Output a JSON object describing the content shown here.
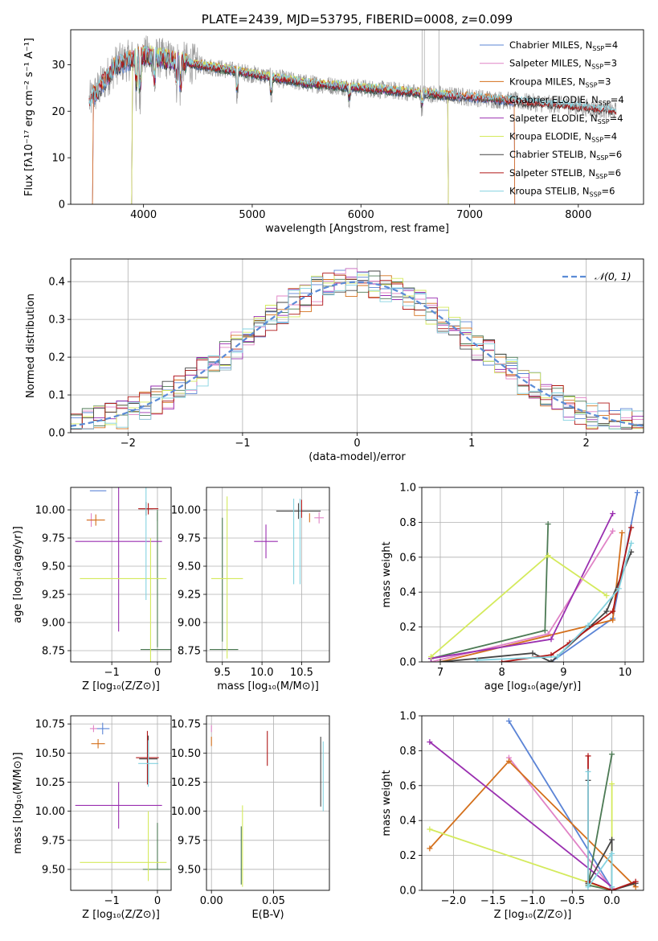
{
  "colors": {
    "Chabrier MILES": "#5b84d6",
    "Salpeter MILES": "#e083c6",
    "Kroupa MILES": "#d4701c",
    "Chabrier ELODIE": "#4c7a54",
    "Salpeter ELODIE": "#9a2fb0",
    "Kroupa ELODIE": "#d4ea5c",
    "Chabrier STELIB": "#444444",
    "Salpeter STELIB": "#b01818",
    "Kroupa STELIB": "#85d3e0",
    "gauss": "#5b8bd6"
  },
  "chart_data": [
    {
      "id": "spectrum",
      "type": "line",
      "title": "PLATE=2439, MJD=53795, FIBERID=0008, z=0.099",
      "xlabel": "wavelength [Angstrom, rest frame]",
      "ylabel": "Flux [fλ10⁻¹⁷ erg cm⁻² s⁻¹ A⁻¹]",
      "xlim": [
        3330,
        8600
      ],
      "ylim": [
        0,
        37.5
      ],
      "xticks": [
        "4000",
        "5000",
        "6000",
        "7000",
        "8000"
      ],
      "yticks": [
        "0",
        "10",
        "20",
        "30"
      ],
      "grid": false,
      "legend_position": "top-right",
      "data_range_x": [
        3500,
        8350
      ],
      "description_of_continuum": [
        [
          3500,
          22
        ],
        [
          3750,
          30
        ],
        [
          4000,
          32
        ],
        [
          4500,
          30
        ],
        [
          5000,
          28
        ],
        [
          5500,
          26
        ],
        [
          6000,
          25
        ],
        [
          6500,
          24
        ],
        [
          7000,
          23
        ],
        [
          7500,
          22
        ],
        [
          8000,
          21
        ],
        [
          8350,
          20
        ]
      ],
      "series": [
        {
          "name": "Chabrier MILES, N_SSP=4"
        },
        {
          "name": "Salpeter MILES, N_SSP=3"
        },
        {
          "name": "Kroupa MILES, N_SSP=3"
        },
        {
          "name": "Chabrier ELODIE, N_SSP=4"
        },
        {
          "name": "Salpeter ELODIE, N_SSP=4"
        },
        {
          "name": "Kroupa ELODIE, N_SSP=4"
        },
        {
          "name": "Chabrier STELIB, N_SSP=6"
        },
        {
          "name": "Salpeter STELIB, N_SSP=6"
        },
        {
          "name": "Kroupa STELIB, N_SSP=6"
        }
      ],
      "data_series_color": "#999999"
    },
    {
      "id": "residuals",
      "type": "line",
      "xlabel": "(data-model)/error",
      "ylabel": "Normed distribution",
      "xlim": [
        -2.5,
        2.5
      ],
      "ylim": [
        0,
        0.46
      ],
      "xticks": [
        "−2",
        "−1",
        "0",
        "1",
        "2"
      ],
      "yticks": [
        "0.0",
        "0.1",
        "0.2",
        "0.3",
        "0.4"
      ],
      "grid": true,
      "legend_position": "top-right",
      "legend": "𝒩(0, 1)",
      "bin_width": 0.1
    },
    {
      "id": "age_Z",
      "type": "scatter",
      "xlabel": "Z [log₁₀(Z/Z⊙)]",
      "ylabel": "age  [log₁₀(age/yr)]",
      "xlim": [
        -1.9,
        0.3
      ],
      "ylim": [
        8.65,
        10.2
      ],
      "xticks": [
        "−1",
        "0"
      ],
      "yticks": [
        "8.75",
        "9.00",
        "9.25",
        "9.50",
        "9.75",
        "10.00"
      ],
      "grid": true,
      "points": [
        {
          "s": "Chabrier MILES",
          "x": -1.3,
          "y": 10.17,
          "xe": 0.18,
          "ye": 0.0
        },
        {
          "s": "Salpeter MILES",
          "x": -1.45,
          "y": 9.91,
          "xe": 0.1,
          "ye": 0.06
        },
        {
          "s": "Kroupa MILES",
          "x": -1.35,
          "y": 9.91,
          "xe": 0.2,
          "ye": 0.05
        },
        {
          "s": "Chabrier ELODIE",
          "x": 0.0,
          "y": 9.95,
          "xe": 0.0,
          "ye": 0.05
        },
        {
          "s": "Chabrier ELODIE",
          "x": -0.02,
          "y": 8.76,
          "xe": 0.35,
          "ye": 0.0
        },
        {
          "s": "Chabrier ELODIE",
          "x": 0.0,
          "y": 9.38,
          "xe": 0.0,
          "ye": 0.6
        },
        {
          "s": "Salpeter ELODIE",
          "x": -0.85,
          "y": 9.72,
          "xe": 0.95,
          "ye": 0.8
        },
        {
          "s": "Kroupa ELODIE",
          "x": -0.75,
          "y": 9.39,
          "xe": 0.95,
          "ye": 0.0
        },
        {
          "s": "Kroupa ELODIE",
          "x": -0.15,
          "y": 9.2,
          "xe": 0.0,
          "ye": 0.55
        },
        {
          "s": "Chabrier STELIB",
          "x": -0.25,
          "y": 10.01,
          "xe": 0.15,
          "ye": 0.06
        },
        {
          "s": "Salpeter STELIB",
          "x": -0.2,
          "y": 10.01,
          "xe": 0.22,
          "ye": 0.05
        },
        {
          "s": "Kroupa STELIB",
          "x": -0.25,
          "y": 9.7,
          "xe": 0.0,
          "ye": 0.5
        }
      ]
    },
    {
      "id": "age_mass",
      "type": "scatter",
      "xlabel": "mass [log₁₀(M/M⊙)]",
      "xlim": [
        9.3,
        10.85
      ],
      "ylim": [
        8.65,
        10.2
      ],
      "xticks": [
        "9.5",
        "10.0",
        "10.5"
      ],
      "yticks": [
        "8.75",
        "9.00",
        "9.25",
        "9.50",
        "9.75",
        "10.00"
      ],
      "grid": true,
      "points": [
        {
          "s": "Chabrier MILES",
          "x": 10.72,
          "y": 10.17,
          "xe": 0.0,
          "ye": 0.0
        },
        {
          "s": "Salpeter MILES",
          "x": 10.72,
          "y": 9.93,
          "xe": 0.06,
          "ye": 0.05
        },
        {
          "s": "Kroupa MILES",
          "x": 10.6,
          "y": 9.93,
          "xe": 0.0,
          "ye": 0.04
        },
        {
          "s": "Chabrier ELODIE",
          "x": 9.52,
          "y": 8.76,
          "xe": 0.18,
          "ye": 0.0
        },
        {
          "s": "Chabrier ELODIE",
          "x": 9.5,
          "y": 9.38,
          "xe": 0.0,
          "ye": 0.55
        },
        {
          "s": "Salpeter ELODIE",
          "x": 10.05,
          "y": 9.72,
          "xe": 0.15,
          "ye": 0.15
        },
        {
          "s": "Kroupa ELODIE",
          "x": 9.56,
          "y": 9.39,
          "xe": 0.2,
          "ye": 0.0
        },
        {
          "s": "Kroupa ELODIE",
          "x": 9.56,
          "y": 9.4,
          "xe": 0.0,
          "ye": 0.72
        },
        {
          "s": "Chabrier STELIB",
          "x": 10.46,
          "y": 9.99,
          "xe": 0.28,
          "ye": 0.07
        },
        {
          "s": "Salpeter STELIB",
          "x": 10.5,
          "y": 10.01,
          "xe": 0.0,
          "ye": 0.08
        },
        {
          "s": "Kroupa STELIB",
          "x": 10.4,
          "y": 9.72,
          "xe": 0.0,
          "ye": 0.38
        },
        {
          "s": "Kroupa STELIB",
          "x": 10.48,
          "y": 9.72,
          "xe": 0.0,
          "ye": 0.38
        }
      ]
    },
    {
      "id": "mw_age",
      "type": "line",
      "xlabel": "age  [log₁₀(age/yr)]",
      "ylabel": "mass weight",
      "xlim": [
        6.7,
        10.3
      ],
      "ylim": [
        0,
        1.0
      ],
      "xticks": [
        "7",
        "8",
        "9",
        "10"
      ],
      "yticks": [
        "0.0",
        "0.2",
        "0.4",
        "0.6",
        "0.8",
        "1.0"
      ],
      "grid": true,
      "series": [
        {
          "s": "Chabrier MILES",
          "x": [
            8.8,
            9.8,
            10.2
          ],
          "y": [
            0.0,
            0.25,
            0.97
          ]
        },
        {
          "s": "Salpeter MILES",
          "x": [
            6.85,
            8.75,
            9.8
          ],
          "y": [
            0.0,
            0.16,
            0.75
          ]
        },
        {
          "s": "Kroupa MILES",
          "x": [
            7.0,
            9.8,
            9.95
          ],
          "y": [
            0.0,
            0.24,
            0.74
          ]
        },
        {
          "s": "Chabrier ELODIE",
          "x": [
            6.85,
            8.7,
            8.75
          ],
          "y": [
            0.02,
            0.18,
            0.79
          ]
        },
        {
          "s": "Salpeter ELODIE",
          "x": [
            6.85,
            8.8,
            9.8
          ],
          "y": [
            0.02,
            0.13,
            0.85
          ]
        },
        {
          "s": "Kroupa ELODIE",
          "x": [
            6.85,
            8.75,
            9.7
          ],
          "y": [
            0.03,
            0.61,
            0.38
          ]
        },
        {
          "s": "Chabrier STELIB",
          "x": [
            7.0,
            8.5,
            8.8,
            9.7,
            10.1
          ],
          "y": [
            0.0,
            0.05,
            0.0,
            0.29,
            0.63
          ]
        },
        {
          "s": "Salpeter STELIB",
          "x": [
            8.0,
            8.8,
            9.1,
            9.8,
            10.1
          ],
          "y": [
            0.0,
            0.04,
            0.11,
            0.29,
            0.77
          ]
        },
        {
          "s": "Kroupa STELIB",
          "x": [
            7.6,
            8.9,
            9.4,
            9.9,
            10.1
          ],
          "y": [
            0.01,
            0.03,
            0.21,
            0.42,
            0.68
          ]
        }
      ]
    },
    {
      "id": "mass_Z",
      "type": "scatter",
      "xlabel": "Z [log₁₀(Z/Z⊙)]",
      "ylabel": "mass [log₁₀(M/M⊙)]",
      "xlim": [
        -1.9,
        0.3
      ],
      "ylim": [
        9.32,
        10.82
      ],
      "xticks": [
        "−1",
        "0"
      ],
      "yticks": [
        "9.50",
        "9.75",
        "10.00",
        "10.25",
        "10.50",
        "10.75"
      ],
      "grid": true,
      "points": [
        {
          "s": "Chabrier MILES",
          "x": -1.2,
          "y": 10.71,
          "xe": 0.15,
          "ye": 0.05
        },
        {
          "s": "Salpeter MILES",
          "x": -1.4,
          "y": 10.71,
          "xe": 0.08,
          "ye": 0.03
        },
        {
          "s": "Kroupa MILES",
          "x": -1.3,
          "y": 10.58,
          "xe": 0.15,
          "ye": 0.04
        },
        {
          "s": "Chabrier ELODIE",
          "x": -0.02,
          "y": 9.5,
          "xe": 0.3,
          "ye": 0.0
        },
        {
          "s": "Chabrier ELODIE",
          "x": 0.0,
          "y": 9.7,
          "xe": 0.0,
          "ye": 0.2
        },
        {
          "s": "Salpeter ELODIE",
          "x": -0.85,
          "y": 10.05,
          "xe": 0.95,
          "ye": 0.2
        },
        {
          "s": "Kroupa ELODIE",
          "x": -0.75,
          "y": 9.56,
          "xe": 0.95,
          "ye": 0.0
        },
        {
          "s": "Kroupa ELODIE",
          "x": -0.2,
          "y": 9.7,
          "xe": 0.0,
          "ye": 0.3
        },
        {
          "s": "Chabrier STELIB",
          "x": -0.2,
          "y": 10.45,
          "xe": 0.2,
          "ye": 0.2
        },
        {
          "s": "Salpeter STELIB",
          "x": -0.22,
          "y": 10.46,
          "xe": 0.25,
          "ye": 0.23
        },
        {
          "s": "Kroupa STELIB",
          "x": -0.2,
          "y": 10.41,
          "xe": 0.22,
          "ye": 0.2
        }
      ]
    },
    {
      "id": "mass_ebv",
      "type": "scatter",
      "xlabel": "E(B-V)",
      "xlim": [
        -0.004,
        0.095
      ],
      "ylim": [
        9.32,
        10.82
      ],
      "xticks": [
        "0.00",
        "0.05"
      ],
      "yticks": [
        "9.50",
        "9.75",
        "10.00",
        "10.25",
        "10.50",
        "10.75"
      ],
      "grid": true,
      "points": [
        {
          "s": "Salpeter MILES",
          "x": 0.0,
          "y": 10.71,
          "xe": 0.0,
          "ye": 0.03
        },
        {
          "s": "Kroupa MILES",
          "x": 0.0,
          "y": 10.6,
          "xe": 0.0,
          "ye": 0.04
        },
        {
          "s": "Salpeter STELIB",
          "x": 0.045,
          "y": 10.54,
          "xe": 0.0,
          "ye": 0.15
        },
        {
          "s": "Chabrier STELIB",
          "x": 0.088,
          "y": 10.34,
          "xe": 0.0,
          "ye": 0.3
        },
        {
          "s": "Kroupa STELIB",
          "x": 0.09,
          "y": 10.3,
          "xe": 0.0,
          "ye": 0.3
        },
        {
          "s": "Kroupa ELODIE",
          "x": 0.025,
          "y": 9.7,
          "xe": 0.0,
          "ye": 0.35
        },
        {
          "s": "Chabrier ELODIE",
          "x": 0.024,
          "y": 9.62,
          "xe": 0.0,
          "ye": 0.25
        }
      ]
    },
    {
      "id": "mw_Z",
      "type": "line",
      "xlabel": "Z [log₁₀(Z/Z⊙)]",
      "ylabel": "mass weight",
      "xlim": [
        -2.4,
        0.4
      ],
      "ylim": [
        0,
        1.0
      ],
      "xticks": [
        "−2.0",
        "−1.5",
        "−1.0",
        "−0.5",
        "0.0"
      ],
      "yticks": [
        "0.0",
        "0.2",
        "0.4",
        "0.6",
        "0.8",
        "1.0"
      ],
      "grid": true,
      "series": [
        {
          "s": "Chabrier MILES",
          "x": [
            -1.3,
            -0.0,
            -0.0
          ],
          "y": [
            0.97,
            0.01,
            0.0
          ]
        },
        {
          "s": "Salpeter MILES",
          "x": [
            -1.3,
            0.0
          ],
          "y": [
            0.76,
            0.01
          ]
        },
        {
          "s": "Kroupa MILES",
          "x": [
            -2.3,
            -1.3,
            0.3
          ],
          "y": [
            0.24,
            0.74,
            0.02
          ]
        },
        {
          "s": "Chabrier ELODIE",
          "x": [
            0.0,
            -0.3,
            0.0
          ],
          "y": [
            0.78,
            0.03,
            0.0
          ]
        },
        {
          "s": "Salpeter ELODIE",
          "x": [
            -2.3,
            0.0
          ],
          "y": [
            0.85,
            0.02
          ]
        },
        {
          "s": "Kroupa ELODIE",
          "x": [
            -2.3,
            0.0,
            0.0
          ],
          "y": [
            0.35,
            0.0,
            0.61
          ]
        },
        {
          "s": "Chabrier STELIB",
          "x": [
            -0.3,
            -0.3,
            0.0,
            0.0,
            0.3
          ],
          "y": [
            0.63,
            0.04,
            0.29,
            0.0,
            0.04
          ]
        },
        {
          "s": "Salpeter STELIB",
          "x": [
            -0.3,
            -0.3,
            0.0,
            0.3
          ],
          "y": [
            0.77,
            0.05,
            0.0,
            0.05
          ]
        },
        {
          "s": "Kroupa STELIB",
          "x": [
            -0.3,
            -0.3,
            0.0,
            0.0
          ],
          "y": [
            0.68,
            0.02,
            0.21,
            0.02
          ]
        }
      ]
    }
  ]
}
